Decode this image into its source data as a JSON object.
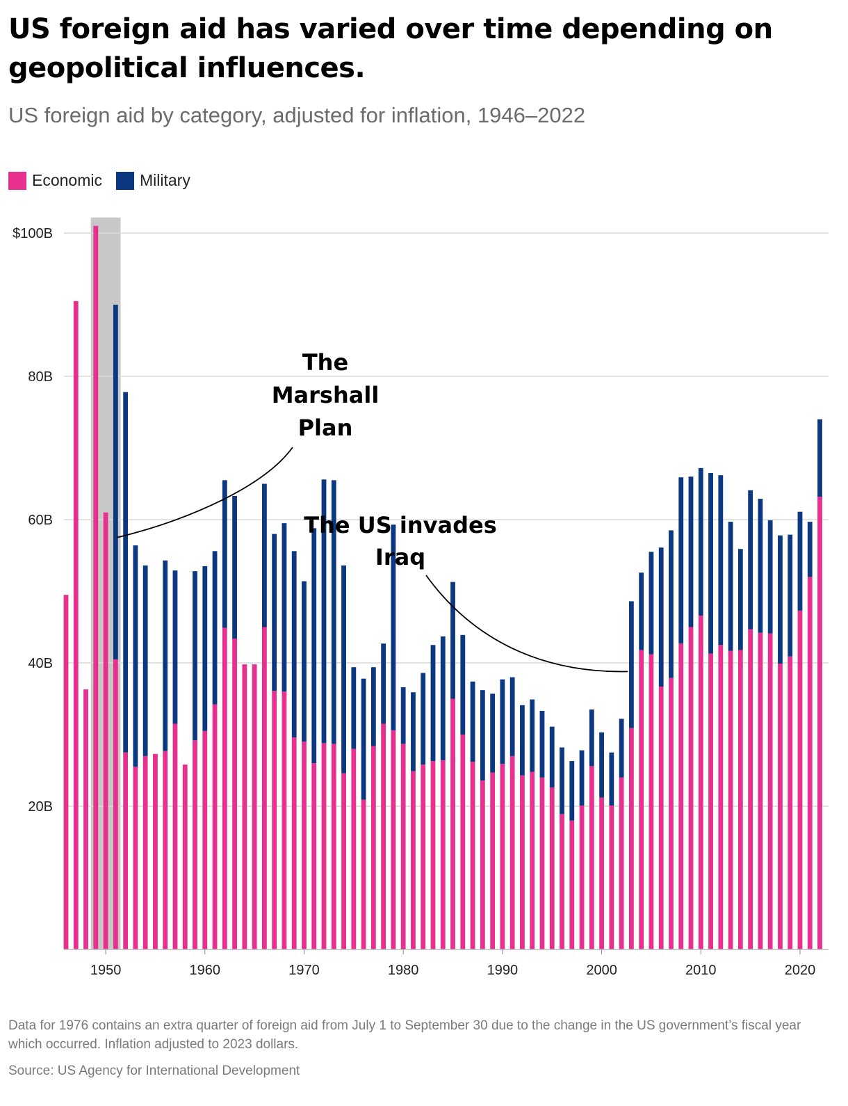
{
  "title": "US foreign aid has varied over time depending on geopolitical influences.",
  "subtitle": "US foreign aid by category, adjusted for inflation, 1946–2022",
  "legend": [
    {
      "label": "Economic",
      "color": "#e8308f"
    },
    {
      "label": "Military",
      "color": "#0b3880"
    }
  ],
  "footnote": "Data for 1976 contains an extra quarter of foreign aid from July 1 to September 30 due to the change in the US government’s fiscal year which occurred. Inflation adjusted to 2023 dollars.",
  "source": "Source: US Agency for International Development",
  "chart_data": {
    "type": "bar",
    "stacked": true,
    "title": "US foreign aid by category, adjusted for inflation, 1946–2022",
    "xlabel": "",
    "ylabel": "",
    "ylim": [
      0,
      101
    ],
    "yticks": [
      20,
      40,
      60,
      80,
      100
    ],
    "ytick_labels": [
      "20B",
      "40B",
      "60B",
      "80B",
      "$100B"
    ],
    "xticks": [
      1950,
      1960,
      1970,
      1980,
      1990,
      2000,
      2010,
      2020
    ],
    "xtick_labels": [
      "1950",
      "1960",
      "1970",
      "1980",
      "1990",
      "2000",
      "2010",
      "2020"
    ],
    "grid": true,
    "colors": {
      "economic": "#e8308f",
      "military": "#0b3880",
      "highlight": "#c8c8c8",
      "grid": "#d9d9d9"
    },
    "highlight_span": [
      1948.5,
      1951.5
    ],
    "x": [
      1946,
      1947,
      1948,
      1949,
      1950,
      1951,
      1952,
      1953,
      1954,
      1955,
      1956,
      1957,
      1958,
      1959,
      1960,
      1961,
      1962,
      1963,
      1964,
      1965,
      1966,
      1967,
      1968,
      1969,
      1970,
      1971,
      1972,
      1973,
      1974,
      1975,
      1976,
      1977,
      1978,
      1979,
      1980,
      1981,
      1982,
      1983,
      1984,
      1985,
      1986,
      1987,
      1988,
      1989,
      1990,
      1991,
      1992,
      1993,
      1994,
      1995,
      1996,
      1997,
      1998,
      1999,
      2000,
      2001,
      2002,
      2003,
      2004,
      2005,
      2006,
      2007,
      2008,
      2009,
      2010,
      2011,
      2012,
      2013,
      2014,
      2015,
      2016,
      2017,
      2018,
      2019,
      2020,
      2021,
      2022
    ],
    "series": [
      {
        "name": "Economic",
        "values": [
          49.5,
          90.5,
          36.3,
          101.0,
          61.0,
          40.5,
          27.5,
          25.5,
          27.0,
          27.3,
          27.7,
          31.5,
          25.8,
          29.2,
          30.5,
          34.2,
          44.9,
          43.4,
          39.8,
          39.8,
          45.0,
          36.1,
          36.0,
          29.6,
          29.0,
          26.0,
          28.8,
          28.7,
          24.6,
          28.0,
          20.9,
          28.4,
          31.5,
          30.6,
          28.7,
          24.9,
          25.8,
          26.3,
          26.4,
          35.0,
          30.0,
          26.2,
          23.6,
          24.7,
          25.9,
          27.0,
          24.3,
          24.8,
          24.0,
          22.6,
          18.9,
          18.0,
          20.1,
          25.6,
          21.2,
          20.1,
          24.0,
          30.9,
          41.8,
          41.2,
          36.7,
          37.9,
          42.7,
          45.0,
          46.6,
          41.3,
          42.5,
          41.7,
          41.8,
          44.7,
          44.2,
          44.1,
          39.9,
          40.9,
          47.3,
          52.0,
          63.2
        ]
      },
      {
        "name": "Military",
        "values": [
          0,
          0,
          0,
          0,
          0,
          49.5,
          50.3,
          30.9,
          26.6,
          0,
          26.6,
          21.4,
          0,
          23.6,
          23.0,
          21.4,
          20.6,
          19.9,
          0,
          0,
          20.0,
          21.9,
          23.5,
          26.0,
          22.4,
          32.8,
          36.8,
          36.8,
          29.0,
          11.4,
          16.9,
          11.0,
          11.2,
          28.7,
          7.9,
          11.0,
          12.8,
          16.2,
          17.3,
          16.3,
          13.9,
          11.2,
          12.6,
          11.0,
          11.8,
          11.0,
          9.8,
          10.1,
          9.3,
          8.5,
          9.3,
          8.3,
          7.7,
          7.9,
          9.1,
          7.4,
          8.2,
          17.7,
          10.8,
          14.3,
          19.4,
          20.6,
          23.2,
          21.0,
          20.6,
          25.2,
          23.7,
          18.0,
          14.1,
          19.4,
          18.7,
          15.8,
          17.9,
          17.0,
          13.8,
          7.7,
          10.8
        ]
      }
    ],
    "annotations": [
      {
        "text_lines": [
          "The",
          "Marshall",
          "Plan"
        ],
        "x": 1951,
        "y": 57.5
      },
      {
        "text_lines": [
          "The US invades",
          "Iraq"
        ],
        "x": 2003,
        "y": 38.8
      }
    ]
  }
}
